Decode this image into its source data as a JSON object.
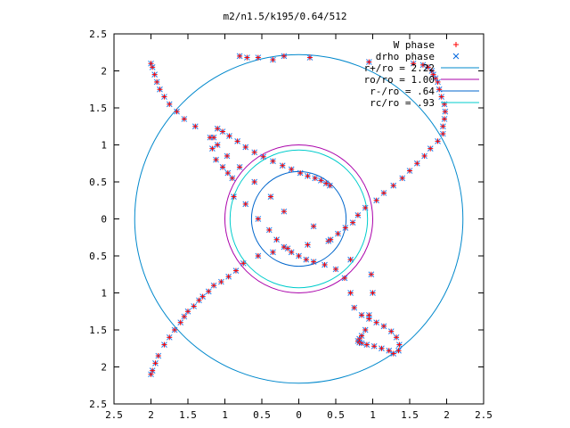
{
  "chart_data": {
    "type": "scatter",
    "title": "m2/n1.5/k195/0.64/512",
    "xlabel": "",
    "ylabel": "",
    "xlim": [
      -2.5,
      2.5
    ],
    "ylim": [
      -2.5,
      2.5
    ],
    "xticks": [
      -2.5,
      -2,
      -1.5,
      -1,
      -0.5,
      0,
      0.5,
      1,
      1.5,
      2,
      2.5
    ],
    "yticks": [
      -2.5,
      -2,
      -1.5,
      -1,
      -0.5,
      0,
      0.5,
      1,
      1.5,
      2,
      2.5
    ],
    "xtick_labels": [
      "2.5",
      "2",
      "1.5",
      "1",
      "0.5",
      "0",
      "0.5",
      "1",
      "1.5",
      "2",
      "2.5"
    ],
    "ytick_labels": [
      "2.5",
      "2",
      "1.5",
      "1",
      "0.5",
      "0",
      "0.5",
      "1",
      "1.5",
      "2",
      "2.5"
    ],
    "grid": false,
    "legend_position": "top-right",
    "legend": [
      {
        "label": "W phase",
        "marker": "plus",
        "color": "#ff0000"
      },
      {
        "label": "drho phase",
        "marker": "x",
        "color": "#0066dd"
      },
      {
        "label": "r+/ro = 2.22",
        "marker": "line",
        "color": "#0088cc"
      },
      {
        "label": "ro/ro = 1.00",
        "marker": "line",
        "color": "#aa00aa"
      },
      {
        "label": "r-/ro = .64",
        "marker": "line",
        "color": "#0066cc"
      },
      {
        "label": "rc/ro = .93",
        "marker": "line",
        "color": "#00cccc"
      }
    ],
    "circles": [
      {
        "name": "r+/ro = 2.22",
        "radius": 2.22,
        "color": "#0088cc"
      },
      {
        "name": "ro/ro = 1.00",
        "radius": 1.0,
        "color": "#aa00aa"
      },
      {
        "name": "r-/ro = .64",
        "radius": 0.64,
        "color": "#0066cc"
      },
      {
        "name": "rc/ro = .93",
        "radius": 0.93,
        "color": "#00cccc"
      }
    ],
    "series": [
      {
        "name": "W phase",
        "marker": "plus",
        "color": "#ff0000",
        "x": [
          0.42,
          0.37,
          0.3,
          0.22,
          0.12,
          0.02,
          -0.1,
          -0.22,
          -0.35,
          -0.48,
          -0.6,
          -0.72,
          -0.83,
          -0.94,
          -1.03,
          -1.1,
          -1.15,
          -1.17,
          -1.12,
          -1.03,
          -0.96,
          -0.9,
          -0.88,
          -0.72,
          -0.55,
          -0.4,
          -0.3,
          -0.2,
          -0.1,
          0,
          0.1,
          0.2,
          0.35,
          0.5,
          0.62,
          0.7,
          0.75,
          0.85,
          0.95,
          1.05,
          1.15,
          1.25,
          1.32,
          1.36,
          1.35,
          1.28,
          1.22,
          1.12,
          1.02,
          0.92,
          0.85,
          0.82,
          0.8,
          0.82,
          0.85,
          0.9,
          0.95,
          1,
          0.98,
          0.7,
          0.4,
          0.2,
          -0.2,
          -0.38,
          -0.6,
          -0.8,
          -0.97,
          -1.1,
          -1.2,
          -1.4,
          -1.55,
          -1.65,
          -1.75,
          -1.82,
          -1.88,
          -1.92,
          -1.95,
          -1.98,
          -2.0,
          -2.0,
          -1.98,
          -1.94,
          -1.9,
          -1.82,
          -1.75,
          -1.68,
          -1.6,
          -1.55,
          -1.5,
          -1.42,
          -1.35,
          -1.3,
          -1.22,
          -1.15,
          -1.05,
          -0.95,
          -0.85,
          -0.75,
          -0.55,
          -0.35,
          -0.15,
          0.12,
          0.43,
          0.53,
          0.63,
          0.73,
          0.8,
          0.9,
          1.05,
          1.15,
          1.28,
          1.4,
          1.5,
          1.6,
          1.7,
          1.78,
          1.88,
          1.95,
          1.95,
          1.97,
          1.98,
          1.97,
          1.93,
          1.9,
          1.88,
          1.85,
          1.82,
          1.8,
          1.75,
          1.68,
          1.55,
          0.95,
          -0.35,
          -0.55,
          -0.7,
          -0.8,
          -0.2,
          0.15
        ],
        "y": [
          0.45,
          0.48,
          0.52,
          0.55,
          0.58,
          0.62,
          0.67,
          0.72,
          0.78,
          0.84,
          0.9,
          0.97,
          1.05,
          1.12,
          1.18,
          1.22,
          1.1,
          0.95,
          0.8,
          0.7,
          0.62,
          0.55,
          0.3,
          0.2,
          0.0,
          -0.15,
          -0.28,
          -0.38,
          -0.45,
          -0.5,
          -0.55,
          -0.58,
          -0.62,
          -0.68,
          -0.8,
          -1.0,
          -1.2,
          -1.3,
          -1.35,
          -1.4,
          -1.45,
          -1.52,
          -1.6,
          -1.7,
          -1.78,
          -1.82,
          -1.78,
          -1.75,
          -1.72,
          -1.7,
          -1.68,
          -1.67,
          -1.65,
          -1.62,
          -1.58,
          -1.5,
          -1.3,
          -1.0,
          -0.75,
          -0.55,
          -0.3,
          -0.1,
          0.1,
          0.3,
          0.5,
          0.7,
          0.85,
          1.0,
          1.1,
          1.25,
          1.35,
          1.45,
          1.55,
          1.65,
          1.75,
          1.85,
          1.95,
          2.05,
          2.1,
          -2.1,
          -2.05,
          -1.95,
          -1.85,
          -1.7,
          -1.6,
          -1.5,
          -1.4,
          -1.32,
          -1.25,
          -1.18,
          -1.1,
          -1.05,
          -0.98,
          -0.9,
          -0.85,
          -0.78,
          -0.7,
          -0.6,
          -0.5,
          -0.45,
          -0.4,
          -0.35,
          -0.28,
          -0.2,
          -0.12,
          -0.05,
          0.05,
          0.15,
          0.25,
          0.35,
          0.45,
          0.55,
          0.65,
          0.75,
          0.85,
          0.95,
          1.05,
          1.15,
          1.25,
          1.35,
          1.45,
          1.55,
          1.65,
          1.75,
          1.85,
          1.9,
          1.95,
          2.0,
          2.05,
          2.08,
          2.1,
          2.12,
          2.15,
          2.18,
          2.18,
          2.2,
          2.2,
          2.18
        ]
      }
    ],
    "spiral_arm_count": 2,
    "point_count_note": ""
  }
}
